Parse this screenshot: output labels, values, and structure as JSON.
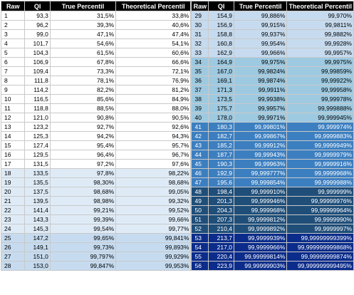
{
  "headers": [
    "Raw",
    "QI",
    "True Percentil",
    "Theoretical Percentil"
  ],
  "left_rows": [
    {
      "raw": "1",
      "qi": "93,3",
      "tp": "31,5%",
      "thp": "33,8%",
      "bg": "#ffffff",
      "fg": "#000000"
    },
    {
      "raw": "2",
      "qi": "96,2",
      "tp": "39,3%",
      "thp": "40,6%",
      "bg": "#ffffff",
      "fg": "#000000"
    },
    {
      "raw": "3",
      "qi": "99,0",
      "tp": "47,1%",
      "thp": "47,4%",
      "bg": "#ffffff",
      "fg": "#000000"
    },
    {
      "raw": "4",
      "qi": "101,7",
      "tp": "54,6%",
      "thp": "54,1%",
      "bg": "#ffffff",
      "fg": "#000000"
    },
    {
      "raw": "5",
      "qi": "104,3",
      "tp": "61,5%",
      "thp": "60,6%",
      "bg": "#ffffff",
      "fg": "#000000"
    },
    {
      "raw": "6",
      "qi": "106,9",
      "tp": "67,8%",
      "thp": "66,6%",
      "bg": "#ffffff",
      "fg": "#000000"
    },
    {
      "raw": "7",
      "qi": "109,4",
      "tp": "73,3%",
      "thp": "72,1%",
      "bg": "#ffffff",
      "fg": "#000000"
    },
    {
      "raw": "8",
      "qi": "111,8",
      "tp": "78,1%",
      "thp": "76,9%",
      "bg": "#ffffff",
      "fg": "#000000"
    },
    {
      "raw": "9",
      "qi": "114,2",
      "tp": "82,2%",
      "thp": "81,2%",
      "bg": "#ffffff",
      "fg": "#000000"
    },
    {
      "raw": "10",
      "qi": "116,5",
      "tp": "85,6%",
      "thp": "84,9%",
      "bg": "#ffffff",
      "fg": "#000000"
    },
    {
      "raw": "11",
      "qi": "118,8",
      "tp": "88,5%",
      "thp": "88,0%",
      "bg": "#ffffff",
      "fg": "#000000"
    },
    {
      "raw": "12",
      "qi": "121,0",
      "tp": "90,8%",
      "thp": "90,5%",
      "bg": "#ffffff",
      "fg": "#000000"
    },
    {
      "raw": "13",
      "qi": "123,2",
      "tp": "92,7%",
      "thp": "92,6%",
      "bg": "#ffffff",
      "fg": "#000000"
    },
    {
      "raw": "14",
      "qi": "125,3",
      "tp": "94,2%",
      "thp": "94,3%",
      "bg": "#ffffff",
      "fg": "#000000"
    },
    {
      "raw": "15",
      "qi": "127,4",
      "tp": "95,4%",
      "thp": "95,7%",
      "bg": "#ffffff",
      "fg": "#000000"
    },
    {
      "raw": "16",
      "qi": "129,5",
      "tp": "96,4%",
      "thp": "96,7%",
      "bg": "#ffffff",
      "fg": "#000000"
    },
    {
      "raw": "17",
      "qi": "131,5",
      "tp": "97,2%",
      "thp": "97,6%",
      "bg": "#ffffff",
      "fg": "#000000"
    },
    {
      "raw": "18",
      "qi": "133,5",
      "tp": "97,8%",
      "thp": "98,22%",
      "bg": "#deebf7",
      "fg": "#000000"
    },
    {
      "raw": "19",
      "qi": "135,5",
      "tp": "98,30%",
      "thp": "98,68%",
      "bg": "#deebf7",
      "fg": "#000000"
    },
    {
      "raw": "20",
      "qi": "137,5",
      "tp": "98,68%",
      "thp": "99,05%",
      "bg": "#deebf7",
      "fg": "#000000"
    },
    {
      "raw": "21",
      "qi": "139,5",
      "tp": "98,98%",
      "thp": "99,32%",
      "bg": "#deebf7",
      "fg": "#000000"
    },
    {
      "raw": "22",
      "qi": "141,4",
      "tp": "99,21%",
      "thp": "99,52%",
      "bg": "#deebf7",
      "fg": "#000000"
    },
    {
      "raw": "23",
      "qi": "143,3",
      "tp": "99,39%",
      "thp": "99,66%",
      "bg": "#deebf7",
      "fg": "#000000"
    },
    {
      "raw": "24",
      "qi": "145,3",
      "tp": "99,54%",
      "thp": "99,77%",
      "bg": "#deebf7",
      "fg": "#000000"
    },
    {
      "raw": "25",
      "qi": "147,2",
      "tp": "99,65%",
      "thp": "99,841%",
      "bg": "#c6dbef",
      "fg": "#000000"
    },
    {
      "raw": "26",
      "qi": "149,1",
      "tp": "99,73%",
      "thp": "99,893%",
      "bg": "#c6dbef",
      "fg": "#000000"
    },
    {
      "raw": "27",
      "qi": "151,0",
      "tp": "99,797%",
      "thp": "99,929%",
      "bg": "#c6dbef",
      "fg": "#000000"
    },
    {
      "raw": "28",
      "qi": "153,0",
      "tp": "99,847%",
      "thp": "99,953%",
      "bg": "#c6dbef",
      "fg": "#000000"
    }
  ],
  "right_rows": [
    {
      "raw": "29",
      "qi": "154,9",
      "tp": "99,886%",
      "thp": "99,970%",
      "bg": "#c6dbef",
      "fg": "#000000"
    },
    {
      "raw": "30",
      "qi": "156,9",
      "tp": "99,915%",
      "thp": "99,9811%",
      "bg": "#c6dbef",
      "fg": "#000000"
    },
    {
      "raw": "31",
      "qi": "158,8",
      "tp": "99,937%",
      "thp": "99,9882%",
      "bg": "#c6dbef",
      "fg": "#000000"
    },
    {
      "raw": "32",
      "qi": "160,8",
      "tp": "99,954%",
      "thp": "99,9928%",
      "bg": "#c6dbef",
      "fg": "#000000"
    },
    {
      "raw": "33",
      "qi": "162,9",
      "tp": "99,966%",
      "thp": "99,9957%",
      "bg": "#c6dbef",
      "fg": "#000000"
    },
    {
      "raw": "34",
      "qi": "164,9",
      "tp": "99,975%",
      "thp": "99,9975%",
      "bg": "#9ecae1",
      "fg": "#000000"
    },
    {
      "raw": "35",
      "qi": "167,0",
      "tp": "99,9824%",
      "thp": "99,99859%",
      "bg": "#9ecae1",
      "fg": "#000000"
    },
    {
      "raw": "36",
      "qi": "169,1",
      "tp": "99,9874%",
      "thp": "99,99922%",
      "bg": "#9ecae1",
      "fg": "#000000"
    },
    {
      "raw": "37",
      "qi": "171,3",
      "tp": "99,9911%",
      "thp": "99,99958%",
      "bg": "#9ecae1",
      "fg": "#000000"
    },
    {
      "raw": "38",
      "qi": "173,5",
      "tp": "99,9938%",
      "thp": "99,99978%",
      "bg": "#9ecae1",
      "fg": "#000000"
    },
    {
      "raw": "39",
      "qi": "175,7",
      "tp": "99,9957%",
      "thp": "99,999888%",
      "bg": "#9ecae1",
      "fg": "#000000"
    },
    {
      "raw": "40",
      "qi": "178,0",
      "tp": "99,9971%",
      "thp": "99,999945%",
      "bg": "#9ecae1",
      "fg": "#000000"
    },
    {
      "raw": "41",
      "qi": "180,3",
      "tp": "99,99801%",
      "thp": "99,999974%",
      "bg": "#3c7fc0",
      "fg": "#ffffff"
    },
    {
      "raw": "42",
      "qi": "182,7",
      "tp": "99,99867%",
      "thp": "99,9999883%",
      "bg": "#3c7fc0",
      "fg": "#ffffff"
    },
    {
      "raw": "43",
      "qi": "185,2",
      "tp": "99,99912%",
      "thp": "99,9999949%",
      "bg": "#3c7fc0",
      "fg": "#ffffff"
    },
    {
      "raw": "44",
      "qi": "187,7",
      "tp": "99,99943%",
      "thp": "99,9999979%",
      "bg": "#3c7fc0",
      "fg": "#ffffff"
    },
    {
      "raw": "45",
      "qi": "190,3",
      "tp": "99,99963%",
      "thp": "99,9999916%",
      "bg": "#3c7fc0",
      "fg": "#ffffff"
    },
    {
      "raw": "46",
      "qi": "192,9",
      "tp": "99,999777%",
      "thp": "99,9999968%",
      "bg": "#3c7fc0",
      "fg": "#ffffff"
    },
    {
      "raw": "47",
      "qi": "195,6",
      "tp": "99,999854%",
      "thp": "99,9999988%",
      "bg": "#3c7fc0",
      "fg": "#ffffff"
    },
    {
      "raw": "48",
      "qi": "198,4",
      "tp": "99,999910%",
      "thp": "99,999999%",
      "bg": "#1f4e79",
      "fg": "#ffffff"
    },
    {
      "raw": "49",
      "qi": "201,3",
      "tp": "99,999946%",
      "thp": "99,99999976%",
      "bg": "#1f4e79",
      "fg": "#ffffff"
    },
    {
      "raw": "50",
      "qi": "204,3",
      "tp": "99,999968%",
      "thp": "99,99999964%",
      "bg": "#1f4e79",
      "fg": "#ffffff"
    },
    {
      "raw": "51",
      "qi": "207,3",
      "tp": "99,9999812%",
      "thp": "99,9999990%",
      "bg": "#1f4e79",
      "fg": "#ffffff"
    },
    {
      "raw": "52",
      "qi": "210,4",
      "tp": "99,9999892%",
      "thp": "99,9999997%",
      "bg": "#1f4e79",
      "fg": "#ffffff"
    },
    {
      "raw": "53",
      "qi": "213,7",
      "tp": "99,9999939%",
      "thp": "99,99999999399%",
      "bg": "#0b2c8a",
      "fg": "#ffffff"
    },
    {
      "raw": "54",
      "qi": "217,0",
      "tp": "99,9999966%",
      "thp": "99,999999999868%",
      "bg": "#0b2c8a",
      "fg": "#ffffff"
    },
    {
      "raw": "55",
      "qi": "220,4",
      "tp": "99,99999814%",
      "thp": "99,99999999874%",
      "bg": "#0b2c8a",
      "fg": "#ffffff"
    },
    {
      "raw": "56",
      "qi": "223,9",
      "tp": "99,99999903%",
      "thp": "99,999999999495%",
      "bg": "#0b2c8a",
      "fg": "#ffffff"
    }
  ]
}
